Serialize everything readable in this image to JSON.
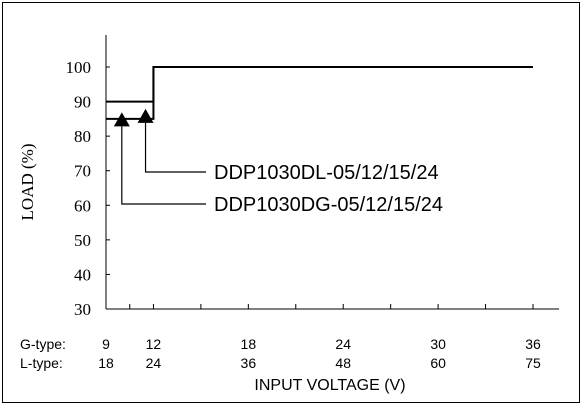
{
  "chart_data": {
    "type": "line",
    "ylabel": "LOAD (%)",
    "xlabel": "INPUT VOLTAGE (V)",
    "ylim": [
      30,
      100
    ],
    "yticks": [
      "30",
      "40",
      "50",
      "60",
      "70",
      "80",
      "90",
      "100"
    ],
    "xlim": [
      9,
      36
    ],
    "x_axis_rows": [
      {
        "label": "G-type:",
        "ticks": [
          "9",
          "12",
          "18",
          "24",
          "30",
          "36"
        ]
      },
      {
        "label": "L-type:",
        "ticks": [
          "18",
          "24",
          "36",
          "48",
          "60",
          "75"
        ]
      }
    ],
    "x_tick_values": [
      9,
      12,
      18,
      24,
      30,
      36
    ],
    "x_minor_ticks": [
      10.5,
      15,
      21,
      27,
      33
    ],
    "grid": false,
    "series": [
      {
        "name": "DDP1030DL-05/12/15/24",
        "x": [
          9,
          12,
          12,
          36
        ],
        "y": [
          90,
          90,
          100,
          100
        ],
        "marker_at": {
          "x": 11.5,
          "y": 85
        }
      },
      {
        "name": "DDP1030DG-05/12/15/24",
        "x": [
          9,
          12,
          12,
          36
        ],
        "y": [
          85,
          85,
          100,
          100
        ],
        "marker_at": {
          "x": 10,
          "y": 84
        }
      }
    ]
  },
  "colors": {
    "line": "#000000",
    "background": "#ffffff"
  }
}
